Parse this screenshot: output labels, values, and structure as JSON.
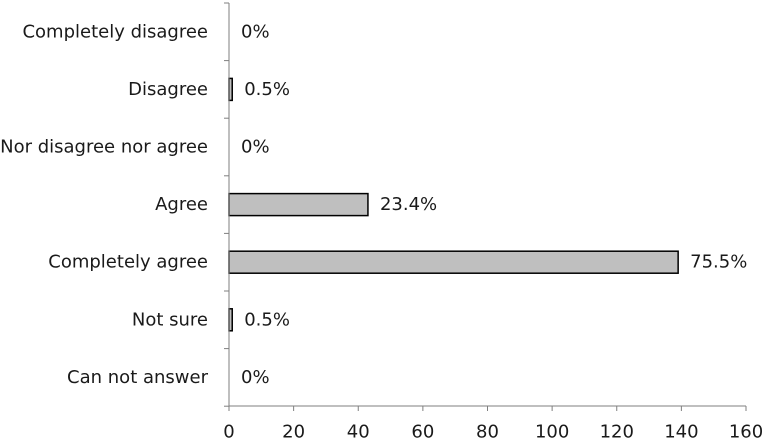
{
  "chart_data": {
    "type": "bar",
    "orientation": "horizontal",
    "categories": [
      "Completely disagree",
      "Disagree",
      "Nor disagree nor agree",
      "Agree",
      "Completely agree",
      "Not sure",
      "Can not answer"
    ],
    "values": [
      0,
      1,
      0,
      43,
      139,
      1,
      0
    ],
    "data_labels": [
      "0%",
      "0.5%",
      "0%",
      "23.4%",
      "75.5%",
      "0.5%",
      "0%"
    ],
    "xlim": [
      0,
      160
    ],
    "xticks": [
      0,
      20,
      40,
      60,
      80,
      100,
      120,
      140,
      160
    ],
    "title": "",
    "xlabel": "",
    "ylabel": "",
    "grid": false,
    "legend": "none",
    "colors": {
      "bar_fill": "#bfbfbf",
      "bar_stroke": "#000000",
      "axis": "#7f7f7f"
    }
  }
}
